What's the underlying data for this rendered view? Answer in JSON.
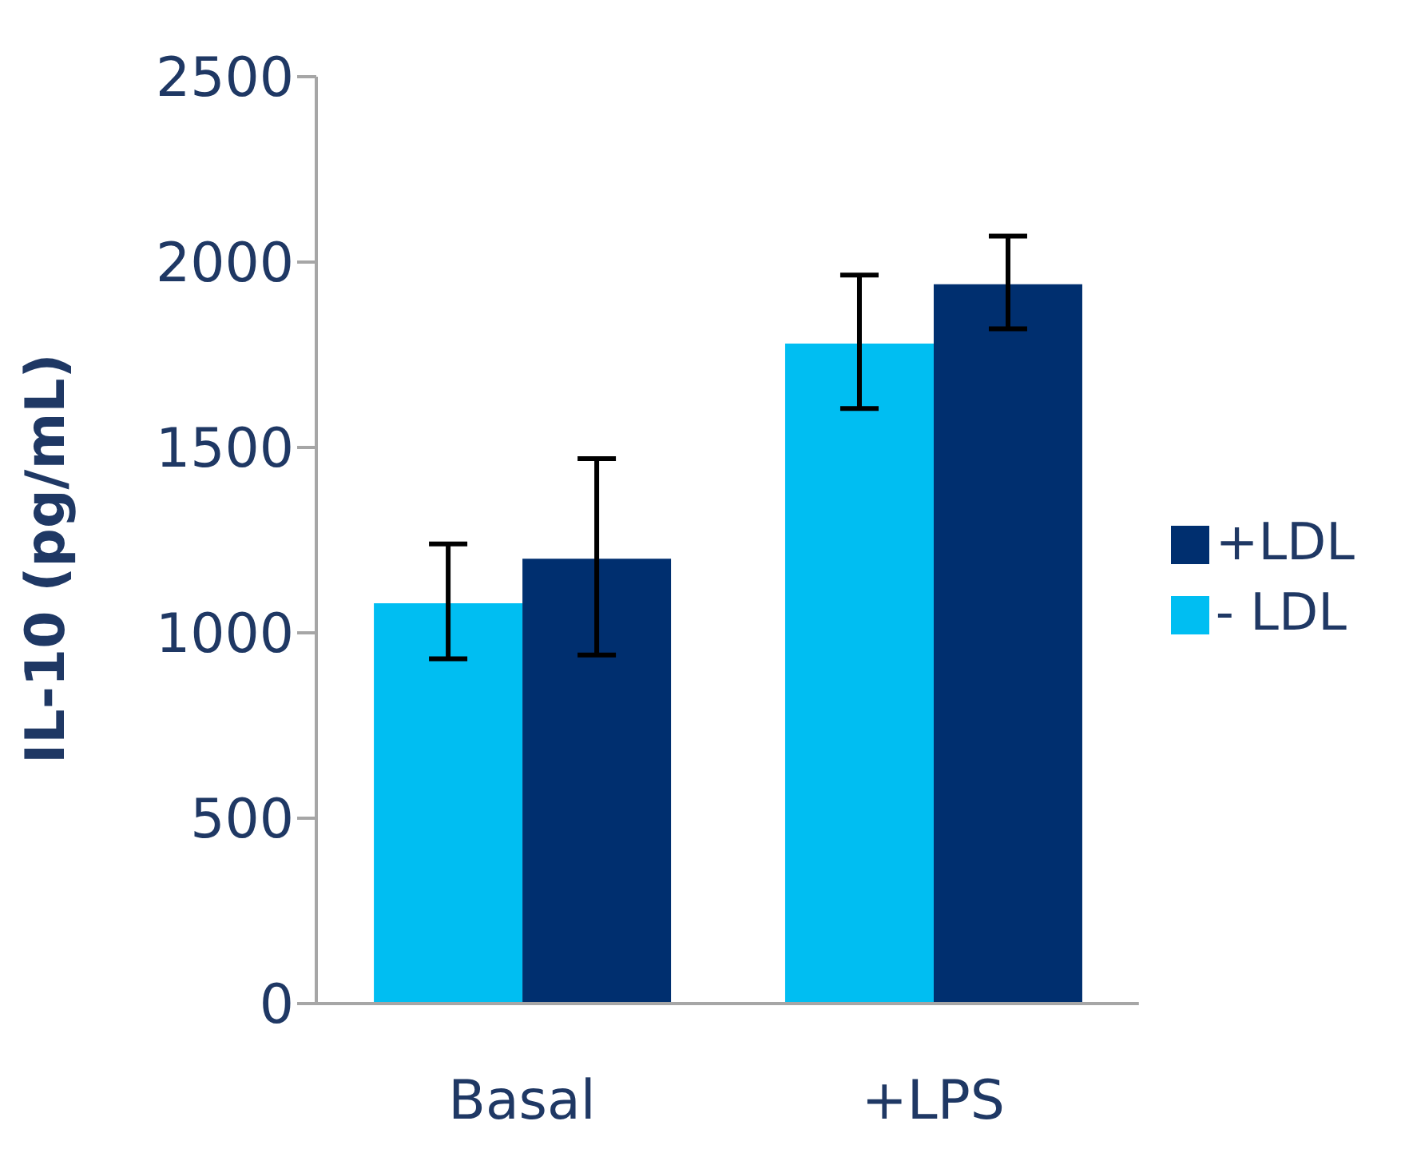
{
  "chart_data": {
    "type": "bar",
    "ylabel": "IL-10 (pg/mL)",
    "categories": [
      "Basal",
      "+LPS"
    ],
    "series": [
      {
        "name": "- LDL",
        "color": "#00bef2",
        "values": [
          1080,
          1780
        ],
        "errors": [
          [
            930,
            1240
          ],
          [
            1605,
            1965
          ]
        ]
      },
      {
        "name": "+LDL",
        "color": "#002f6f",
        "values": [
          1200,
          1940
        ],
        "errors": [
          [
            940,
            1470
          ],
          [
            1820,
            2070
          ]
        ]
      }
    ],
    "ylim": [
      0,
      2500
    ],
    "yticks": [
      0,
      500,
      1000,
      1500,
      2000,
      2500
    ],
    "grid": false,
    "legend": "right"
  }
}
